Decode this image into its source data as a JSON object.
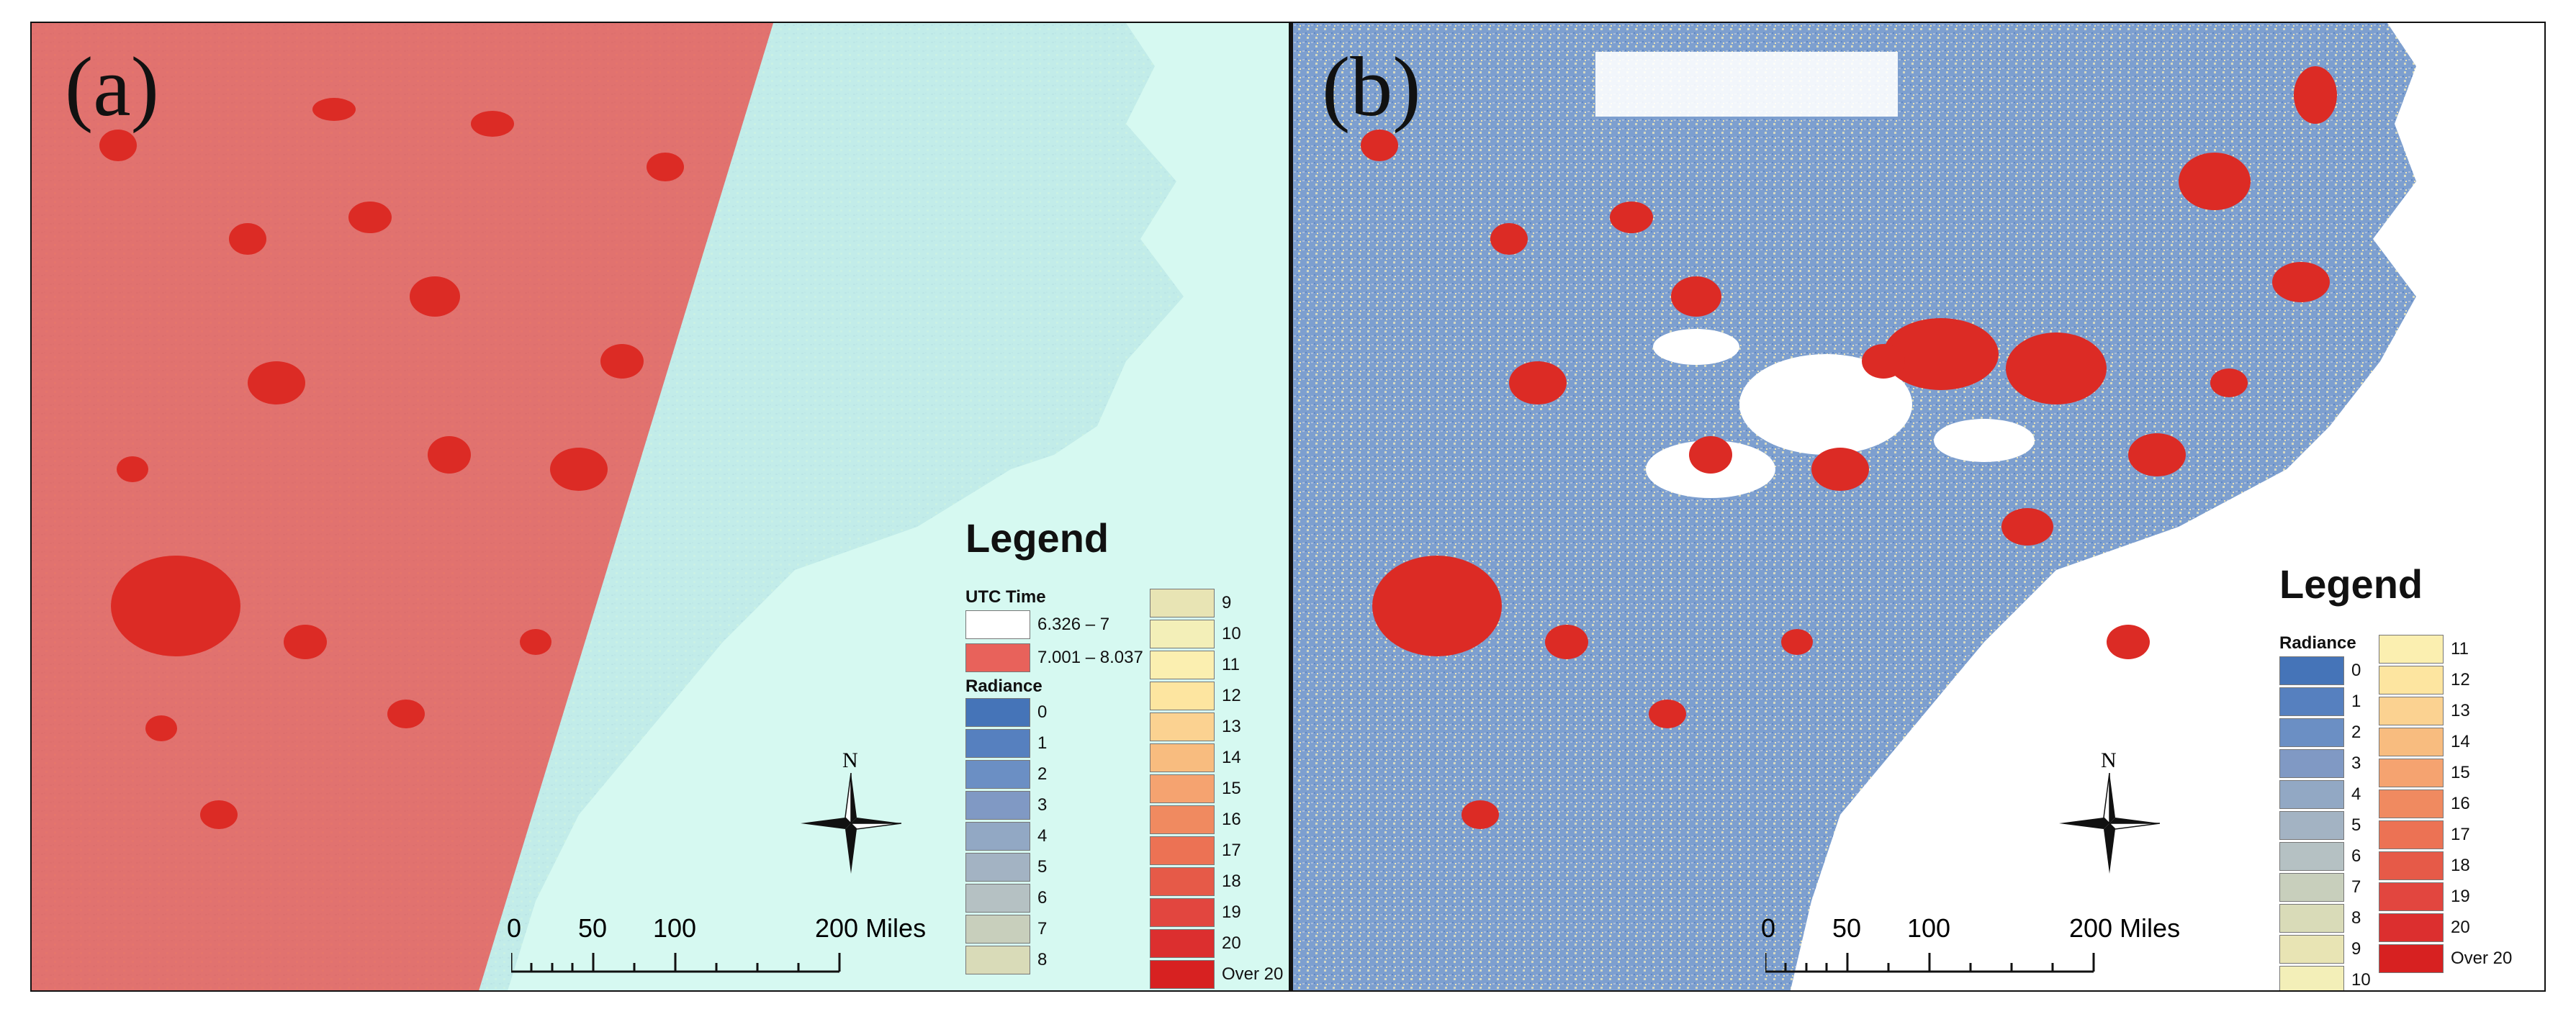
{
  "panels": {
    "a": {
      "label": "(a)",
      "legend": {
        "title": "Legend",
        "time_heading": "UTC Time",
        "time_classes": [
          {
            "label": "6.326 – 7",
            "color": "#ffffff"
          },
          {
            "label": "7.001 – 8.037",
            "color": "#e8625b"
          }
        ],
        "radiance_heading": "Radiance",
        "radiance_col1": [
          "0",
          "1",
          "2",
          "3",
          "4",
          "5",
          "6",
          "7",
          "8"
        ],
        "radiance_col2": [
          "9",
          "10",
          "11",
          "12",
          "13",
          "14",
          "15",
          "16",
          "17",
          "18",
          "19",
          "20",
          "Over 20"
        ]
      },
      "north_label": "N",
      "scale": {
        "ticks": [
          "0",
          "50",
          "100",
          "200 Miles"
        ]
      }
    },
    "b": {
      "label": "(b)",
      "legend": {
        "title": "Legend",
        "radiance_heading": "Radiance",
        "radiance_col1": [
          "0",
          "1",
          "2",
          "3",
          "4",
          "5",
          "6",
          "7",
          "8",
          "9",
          "10"
        ],
        "radiance_col2": [
          "11",
          "12",
          "13",
          "14",
          "15",
          "16",
          "17",
          "18",
          "19",
          "20",
          "Over 20"
        ]
      },
      "north_label": "N",
      "scale": {
        "ticks": [
          "0",
          "50",
          "100",
          "200 Miles"
        ]
      }
    }
  },
  "colors": {
    "radiance_ramp": [
      "#4574b8",
      "#5680bf",
      "#6b8fc4",
      "#8099c4",
      "#92a8c4",
      "#a3b3c3",
      "#b5c1c3",
      "#c8cfbc",
      "#d9dbb8",
      "#e8e4b4",
      "#f3efb8",
      "#fbefb0",
      "#fde5a0",
      "#fbd291",
      "#f8bc7f",
      "#f5a370",
      "#f08a60",
      "#ec7254",
      "#e65a48",
      "#e2463f",
      "#dc2f2f",
      "#d72121"
    ],
    "swath_overlay": "#e8625b",
    "aqua_overlay": "#c6f6ec",
    "urban": "#dc2b25"
  }
}
